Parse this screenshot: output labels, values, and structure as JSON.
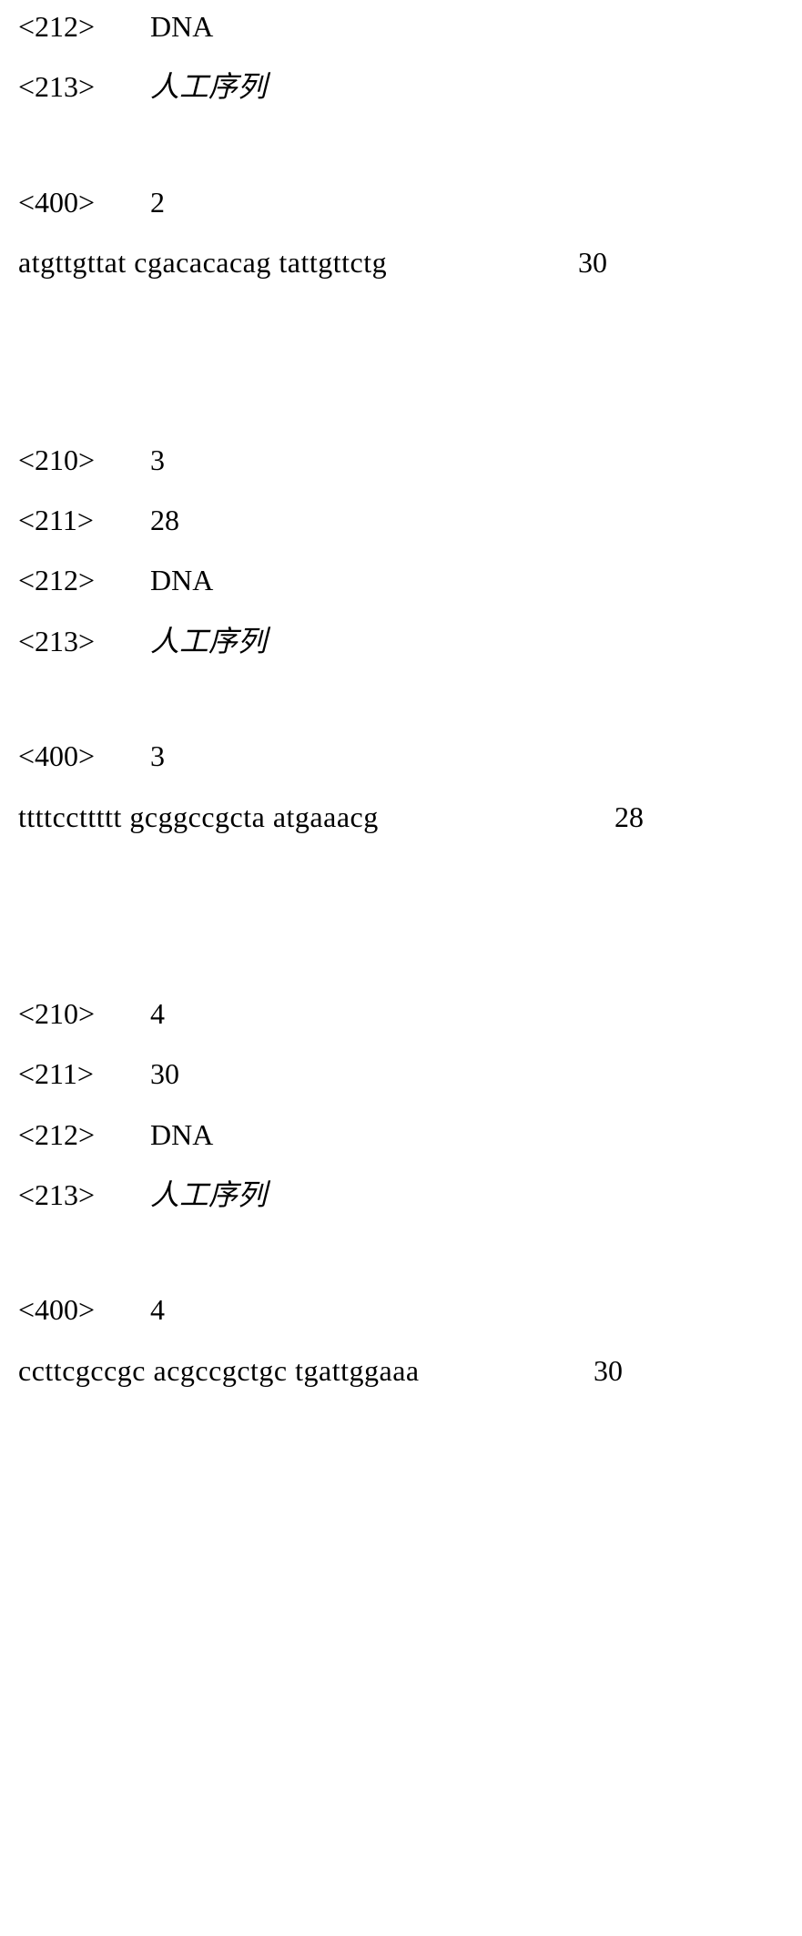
{
  "entries": [
    {
      "tags": [
        {
          "label": "<212>",
          "value": "DNA",
          "cjk": false
        },
        {
          "label": "<213>",
          "value": "人工序列",
          "cjk": true
        }
      ],
      "gap_after_tags": "small",
      "seq_header": {
        "label": "<400>",
        "value": "2"
      },
      "sequence": "atgttgttat cgacacacag tattgttctg",
      "count": "30",
      "count_left": 615,
      "gap_after_seq": "large"
    },
    {
      "tags": [
        {
          "label": "<210>",
          "value": "3",
          "cjk": false
        },
        {
          "label": "<211>",
          "value": "28",
          "cjk": false
        },
        {
          "label": "<212>",
          "value": "DNA",
          "cjk": false
        },
        {
          "label": "<213>",
          "value": "人工序列",
          "cjk": true
        }
      ],
      "gap_after_tags": "small",
      "seq_header": {
        "label": "<400>",
        "value": "3"
      },
      "sequence": "ttttccttttt gcggccgcta atgaaacg",
      "count": "28",
      "count_left": 655,
      "gap_after_seq": "large"
    },
    {
      "tags": [
        {
          "label": "<210>",
          "value": "4",
          "cjk": false
        },
        {
          "label": "<211>",
          "value": "30",
          "cjk": false
        },
        {
          "label": "<212>",
          "value": "DNA",
          "cjk": false
        },
        {
          "label": "<213>",
          "value": "人工序列",
          "cjk": true
        }
      ],
      "gap_after_tags": "small",
      "seq_header": {
        "label": "<400>",
        "value": "4"
      },
      "sequence": "ccttcgccgc acgccgctgc tgattggaaa",
      "count": "30",
      "count_left": 632,
      "gap_after_seq": "none"
    }
  ],
  "typography": {
    "font_family": "Times New Roman",
    "font_size_pt": 24,
    "text_color": "#000000",
    "background_color": "#ffffff"
  }
}
